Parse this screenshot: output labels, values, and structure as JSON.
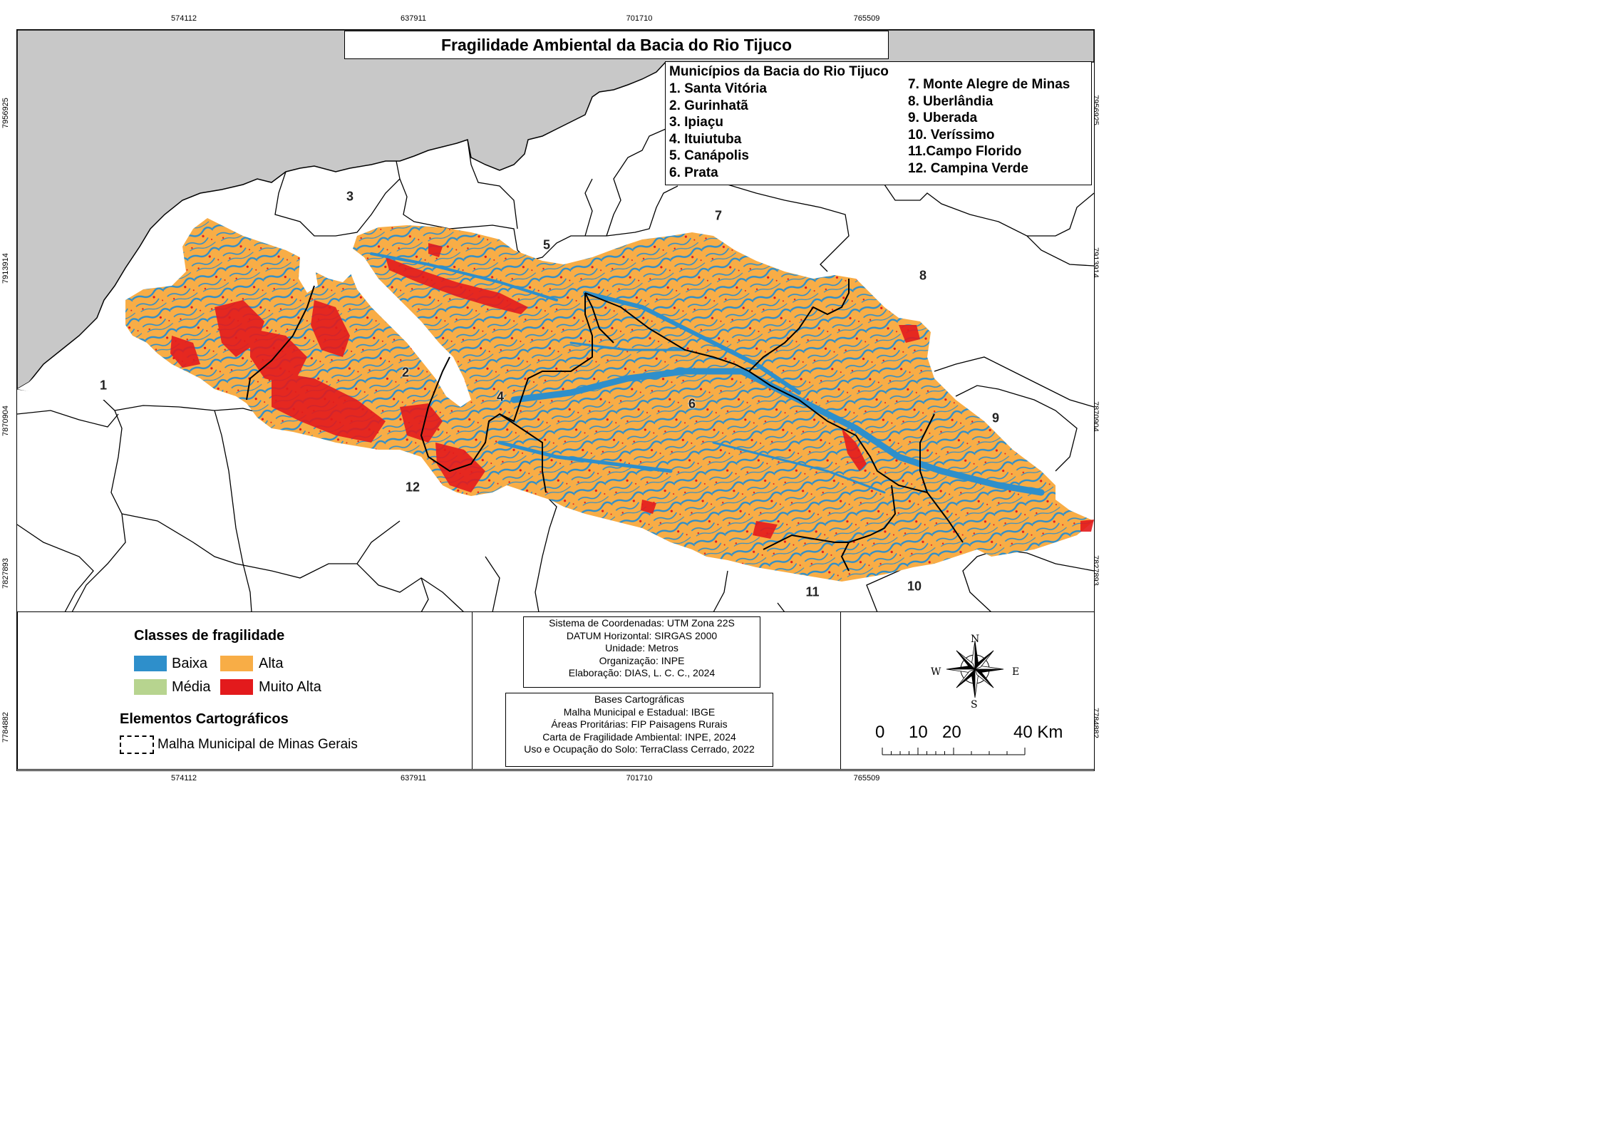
{
  "map": {
    "title": "Fragilidade Ambiental da Bacia do Rio Tijuco",
    "coords": {
      "x_ticks": [
        "574112",
        "637911",
        "701710",
        "765509"
      ],
      "y_ticks": [
        "7956925",
        "7913914",
        "7870904",
        "7827893",
        "7784882"
      ]
    },
    "municipalities": {
      "header": "Municípios da Bacia do Rio Tijuco",
      "col1": [
        "1. Santa Vitória",
        "2. Gurinhatã",
        "3. Ipiaçu",
        "4. Ituiutuba",
        "5. Canápolis",
        "6. Prata"
      ],
      "col2": [
        "7. Monte Alegre de Minas",
        "8. Uberlândia",
        "9. Uberada",
        "10. Veríssimo",
        "11.Campo Florido",
        "12. Campina Verde"
      ]
    },
    "map_labels": [
      "1",
      "2",
      "3",
      "4",
      "5",
      "6",
      "7",
      "8",
      "9",
      "10",
      "11",
      "12"
    ],
    "colors": {
      "baixa": "#2e8fcb",
      "media": "#b7d48f",
      "alta": "#f8ad46",
      "muito_alta": "#e31a1c",
      "outside_state": "#c8c8c8"
    }
  },
  "legend": {
    "classes_title": "Classes de fragilidade",
    "classes": {
      "baixa": "Baixa",
      "alta": "Alta",
      "media": "Média",
      "muito_alta": "Muito Alta"
    },
    "elements_title": "Elementos Cartográficos",
    "boundary_label": "Malha Municipal de Minas Gerais"
  },
  "info": {
    "system": [
      "Sistema de Coordenadas: UTM Zona 22S",
      "DATUM Horizontal: SIRGAS 2000",
      "Unidade: Metros",
      "Organização: INPE",
      "Elaboração: DIAS, L. C. C., 2024"
    ],
    "sources": [
      "Bases Cartográficas",
      "Malha Municipal e Estadual: IBGE",
      "Áreas Proritárias: FIP Paisagens Rurais",
      "Carta de Fragilidade Ambiental: INPE, 2024",
      "Uso e Ocupação do Solo: TerraClass Cerrado, 2022"
    ]
  },
  "compass": {
    "n": "N",
    "s": "S",
    "e": "E",
    "w": "W"
  },
  "scalebar": {
    "labels": [
      "0",
      "10",
      "20",
      "40 Km"
    ]
  }
}
